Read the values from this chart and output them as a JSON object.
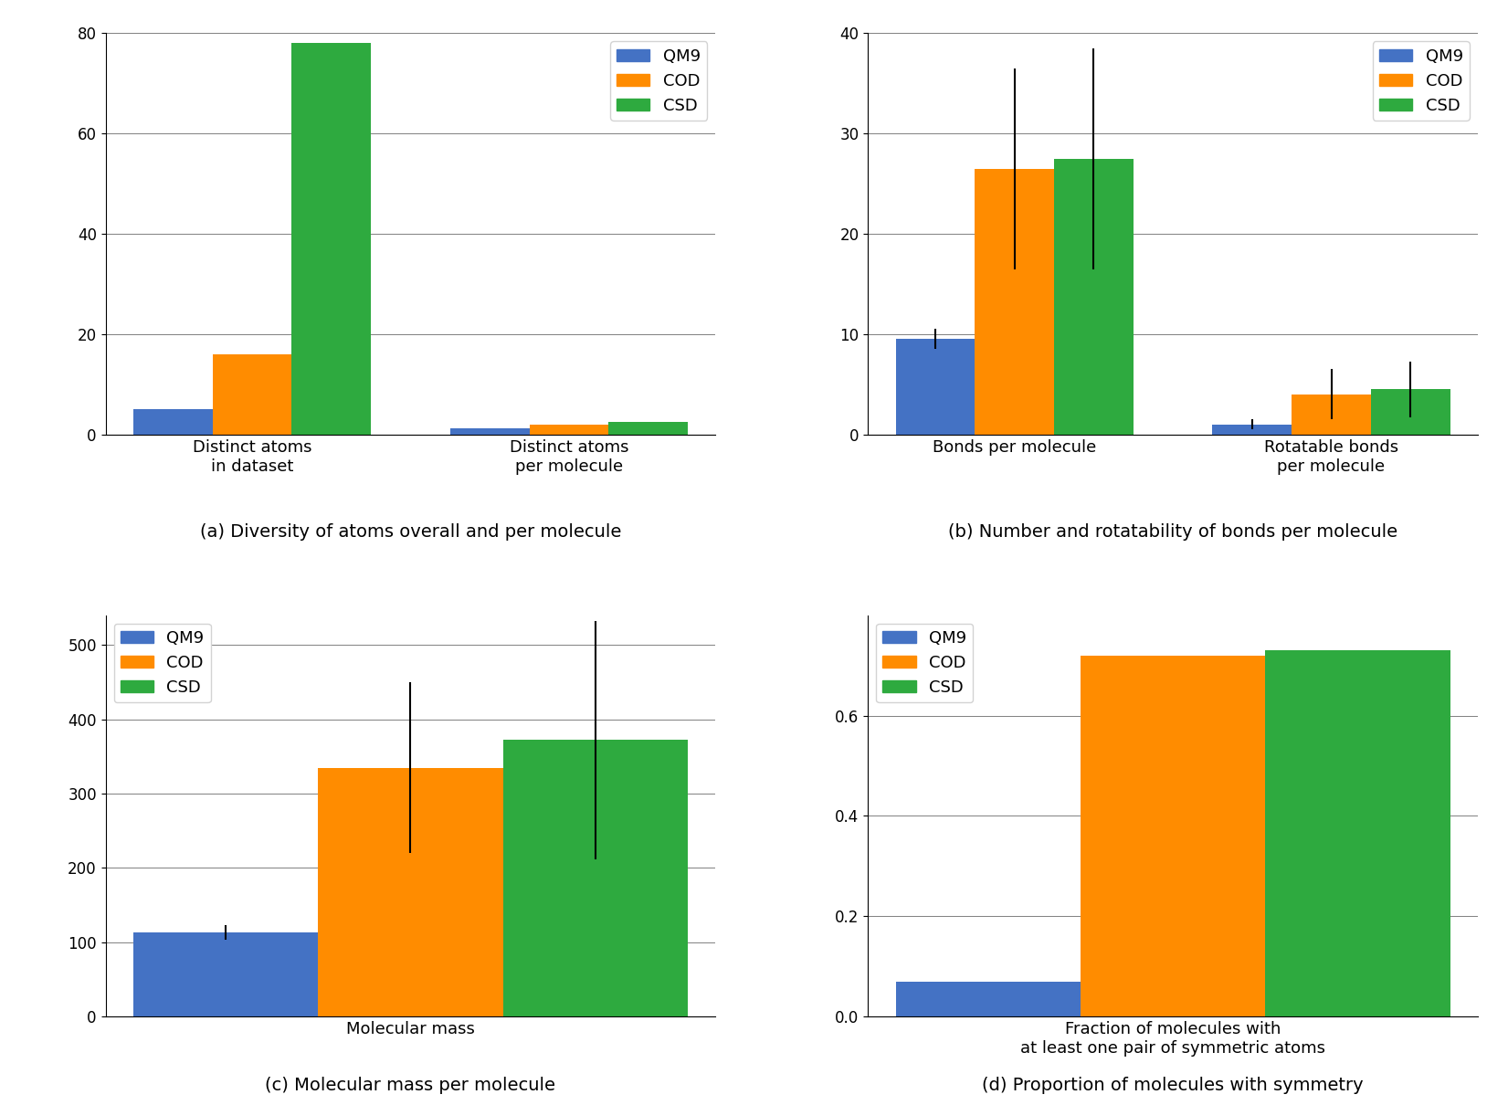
{
  "colors": {
    "QM9": "#4472C4",
    "COD": "#FF8C00",
    "CSD": "#2EAA3F"
  },
  "panel_a": {
    "caption": "(a) Diversity of atoms overall and per molecule",
    "groups": [
      "Distinct atoms\nin dataset",
      "Distinct atoms\nper molecule"
    ],
    "values": {
      "QM9": [
        5,
        1.2
      ],
      "COD": [
        16,
        2.0
      ],
      "CSD": [
        78,
        2.5
      ]
    },
    "ylim": [
      0,
      80
    ],
    "yticks": [
      0,
      20,
      40,
      60,
      80
    ]
  },
  "panel_b": {
    "caption": "(b) Number and rotatability of bonds per molecule",
    "groups": [
      "Bonds per molecule",
      "Rotatable bonds\nper molecule"
    ],
    "values": {
      "QM9": [
        9.5,
        1.0
      ],
      "COD": [
        26.5,
        4.0
      ],
      "CSD": [
        27.5,
        4.5
      ]
    },
    "errors": {
      "QM9": [
        1.0,
        0.5
      ],
      "COD": [
        10.0,
        2.5
      ],
      "CSD": [
        11.0,
        2.8
      ]
    },
    "ylim": [
      0,
      40
    ],
    "yticks": [
      0,
      10,
      20,
      30,
      40
    ]
  },
  "panel_c": {
    "caption": "(c) Molecular mass per molecule",
    "groups": [
      "Molecular mass"
    ],
    "values": {
      "QM9": [
        113
      ],
      "COD": [
        335
      ],
      "CSD": [
        372
      ]
    },
    "errors": {
      "QM9": [
        10
      ],
      "COD": [
        115
      ],
      "CSD": [
        160
      ]
    },
    "ylim": [
      0,
      540
    ],
    "yticks": [
      0,
      100,
      200,
      300,
      400,
      500
    ]
  },
  "panel_d": {
    "caption": "(d) Proportion of molecules with symmetry",
    "groups": [
      "Fraction of molecules with\nat least one pair of symmetric atoms"
    ],
    "values": {
      "QM9": [
        0.07
      ],
      "COD": [
        0.72
      ],
      "CSD": [
        0.73
      ]
    },
    "ylim": [
      0.0,
      0.8
    ],
    "yticks": [
      0.0,
      0.2,
      0.4,
      0.6
    ]
  },
  "legend_labels": [
    "QM9",
    "COD",
    "CSD"
  ],
  "bar_width": 0.25,
  "caption_fontsize": 14
}
